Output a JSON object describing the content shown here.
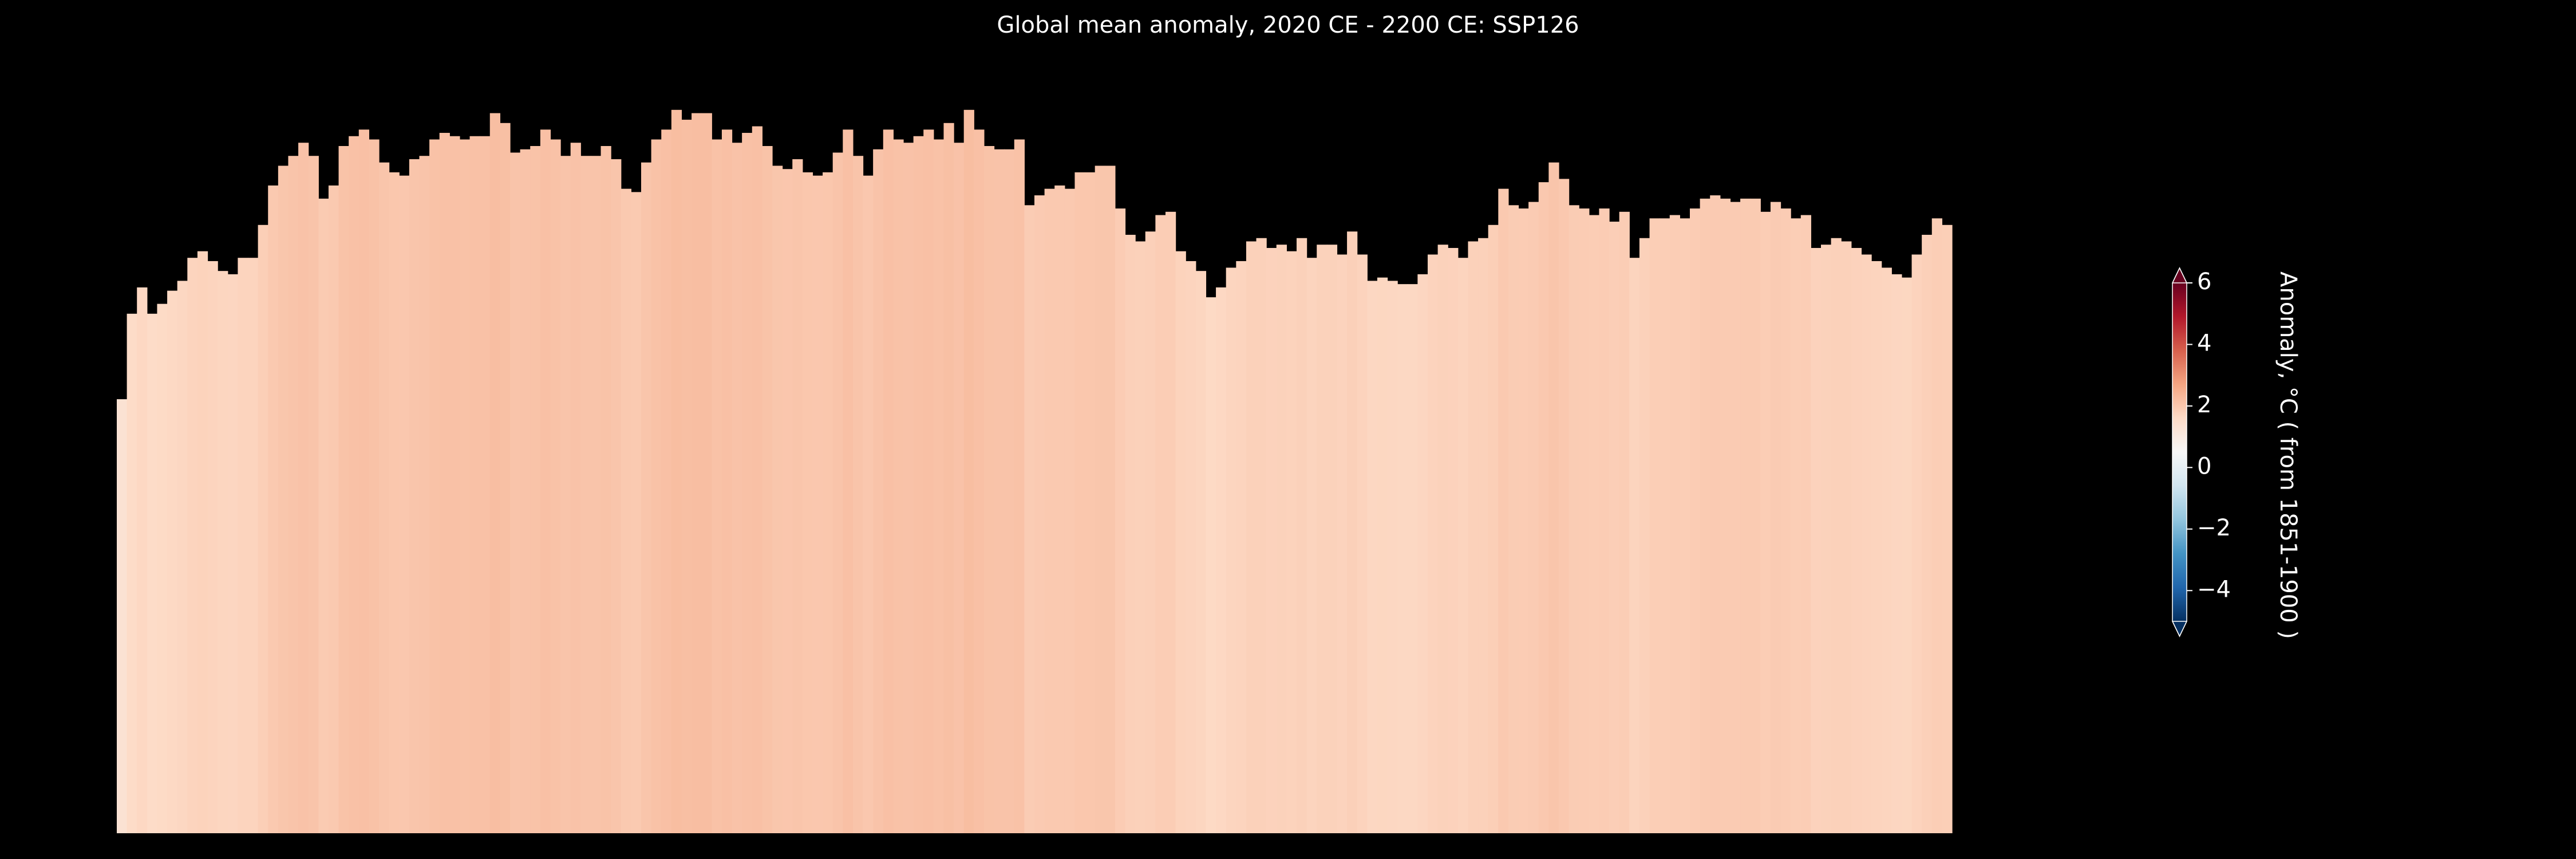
{
  "chart_data": {
    "type": "bar",
    "title": "Global mean anomaly, 2020 CE - 2200 CE: SSP126",
    "values": [
      1.32,
      1.58,
      1.66,
      1.58,
      1.61,
      1.65,
      1.68,
      1.75,
      1.77,
      1.74,
      1.71,
      1.7,
      1.75,
      1.75,
      1.85,
      1.97,
      2.03,
      2.06,
      2.1,
      2.06,
      1.93,
      1.97,
      2.09,
      2.12,
      2.14,
      2.11,
      2.04,
      2.01,
      2.0,
      2.05,
      2.06,
      2.11,
      2.13,
      2.12,
      2.11,
      2.12,
      2.12,
      2.19,
      2.16,
      2.07,
      2.08,
      2.09,
      2.14,
      2.11,
      2.06,
      2.1,
      2.06,
      2.06,
      2.09,
      2.05,
      1.96,
      1.95,
      2.04,
      2.11,
      2.14,
      2.2,
      2.17,
      2.19,
      2.19,
      2.11,
      2.14,
      2.1,
      2.13,
      2.15,
      2.09,
      2.03,
      2.02,
      2.05,
      2.01,
      2.0,
      2.01,
      2.07,
      2.14,
      2.06,
      2.0,
      2.08,
      2.14,
      2.11,
      2.1,
      2.12,
      2.14,
      2.11,
      2.16,
      2.1,
      2.2,
      2.14,
      2.09,
      2.08,
      2.08,
      2.11,
      1.91,
      1.94,
      1.96,
      1.97,
      1.96,
      2.01,
      2.01,
      2.03,
      2.03,
      1.9,
      1.82,
      1.8,
      1.83,
      1.88,
      1.89,
      1.77,
      1.74,
      1.71,
      1.63,
      1.66,
      1.72,
      1.74,
      1.8,
      1.81,
      1.78,
      1.79,
      1.77,
      1.81,
      1.75,
      1.79,
      1.79,
      1.76,
      1.83,
      1.76,
      1.68,
      1.69,
      1.68,
      1.67,
      1.67,
      1.7,
      1.76,
      1.79,
      1.78,
      1.75,
      1.8,
      1.81,
      1.85,
      1.96,
      1.91,
      1.9,
      1.92,
      1.98,
      2.04,
      1.99,
      1.91,
      1.9,
      1.88,
      1.9,
      1.86,
      1.89,
      1.75,
      1.81,
      1.87,
      1.87,
      1.88,
      1.87,
      1.9,
      1.93,
      1.94,
      1.93,
      1.92,
      1.93,
      1.93,
      1.89,
      1.92,
      1.9,
      1.87,
      1.88,
      1.78,
      1.79,
      1.81,
      1.8,
      1.78,
      1.76,
      1.74,
      1.72,
      1.7,
      1.69,
      1.76,
      1.82,
      1.87,
      1.85
    ],
    "ylim": [
      0,
      2.4
    ],
    "colorbar": {
      "label": "Anomaly, °C ( from 1851-1900 )",
      "clim": [
        -5,
        6
      ],
      "ticks": [
        {
          "value": -4,
          "label": "−4"
        },
        {
          "value": -2,
          "label": "−2"
        },
        0,
        2,
        4,
        6
      ],
      "colormap": [
        "#053061",
        "#2166ac",
        "#4393c3",
        "#92c5de",
        "#d1e5f0",
        "#f7f7f7",
        "#fddbc7",
        "#f4a582",
        "#d6604d",
        "#b2182b",
        "#67001f"
      ]
    }
  }
}
